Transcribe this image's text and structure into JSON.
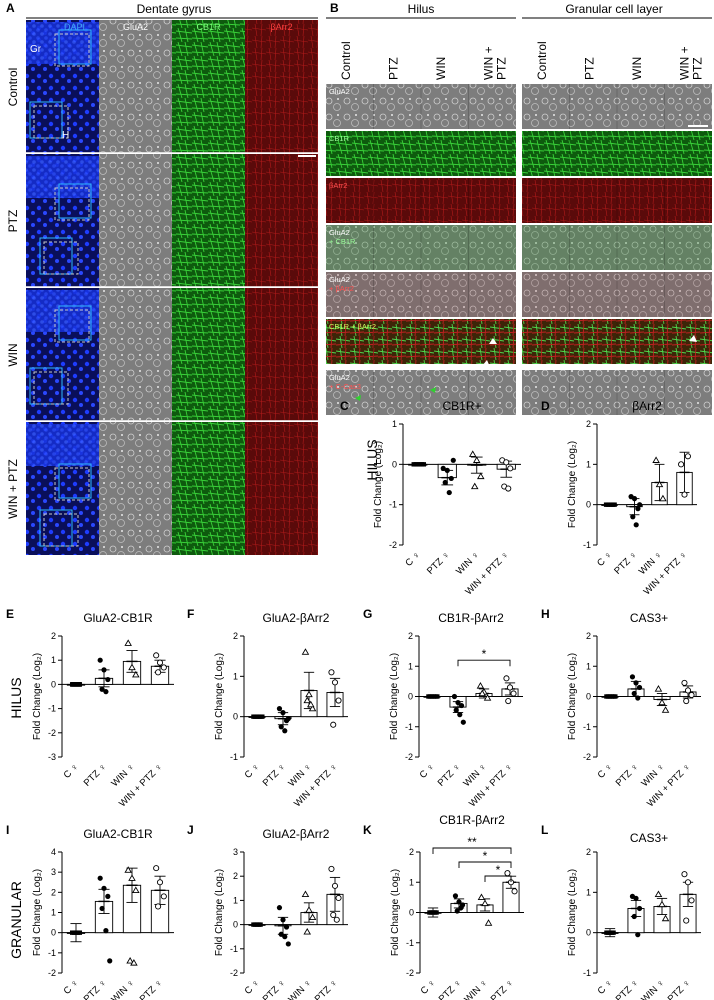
{
  "panels": {
    "A": {
      "letter": "A",
      "title": "Dentate gyrus",
      "rows": [
        "Control",
        "PTZ",
        "WIN",
        "WIN + PTZ"
      ],
      "channels": [
        {
          "label": "DAPI",
          "color": "#1e3cff",
          "label_color": "#3fa9f5"
        },
        {
          "label": "GluA2",
          "color": "#8c8c8c",
          "label_color": "#ffffff"
        },
        {
          "label": "CB1R",
          "color": "#1fa51f",
          "label_color": "#7cff7c"
        },
        {
          "label": "βArr2",
          "color": "#a01010",
          "label_color": "#ff4040"
        }
      ],
      "region_labels": [
        "Gr",
        "H"
      ]
    },
    "B": {
      "letter": "B",
      "titles": [
        "Hilus",
        "Granular cell layer"
      ],
      "groups": [
        "Control",
        "PTZ",
        "WIN",
        "WIN + PTZ"
      ],
      "group_line1": [
        "Control",
        "PTZ",
        "WIN",
        "WIN +"
      ],
      "group_line2": [
        "",
        "",
        "",
        "PTZ"
      ],
      "row_labels": [
        {
          "l1": "GluA2",
          "l1c": "#ffffff",
          "l2": "",
          "l2c": "#ffffff",
          "color": "#8a8a8a"
        },
        {
          "l1": "CB1R",
          "l1c": "#9cff9c",
          "l2": "",
          "l2c": "#ffffff",
          "color": "#1e9e1e"
        },
        {
          "l1": "βArr2",
          "l1c": "#ff5050",
          "l2": "",
          "l2c": "#ffffff",
          "color": "#9a0f0f"
        },
        {
          "l1": "GluA2",
          "l1c": "#ffffff",
          "l2": "+ CB1R",
          "l2c": "#9cff9c",
          "color": "#6f8a6f"
        },
        {
          "l1": "GluA2",
          "l1c": "#ffffff",
          "l2": "+ βArr2",
          "l2c": "#ff5050",
          "color": "#847070"
        },
        {
          "l1": "CB1R + βArr2",
          "l1c": "#c8ff60",
          "l2": "",
          "l2c": "#ffffff",
          "color": "#5a5a14"
        },
        {
          "l1": "GluA2",
          "l1c": "#ffffff",
          "l2": "+ C-Cas3",
          "l2c": "#ff5050",
          "color": "#7a7a7a"
        }
      ]
    }
  },
  "section_labels": {
    "hilus_1": "HILUS",
    "hilus_2": "HILUS",
    "granular": "GRANULAR"
  },
  "chart_data": [
    {
      "panel": "C",
      "type": "bar",
      "title": "CB1R+",
      "ylabel": "Fold Change (Log₂)",
      "ylim": [
        -2,
        1
      ],
      "yticks": [
        -2,
        -1,
        0,
        1
      ],
      "categories": [
        "C ♀",
        "PTZ ♀",
        "WIN ♀",
        "WIN + PTZ ♀"
      ],
      "values": [
        0,
        -0.33,
        -0.02,
        -0.12
      ],
      "errors": [
        0.03,
        0.18,
        0.2,
        0.2
      ],
      "markers": [
        "square",
        "circle",
        "triangle",
        "open-circle"
      ],
      "points": [
        [
          0,
          0,
          0,
          0,
          0,
          0
        ],
        [
          -0.1,
          -0.15,
          -0.35,
          -0.45,
          -0.7,
          0.1
        ],
        [
          0.25,
          0.1,
          -0.3,
          -0.55
        ],
        [
          0.1,
          0.05,
          -0.1,
          -0.55,
          -0.6
        ]
      ],
      "significance": []
    },
    {
      "panel": "D",
      "type": "bar",
      "title": "βArr2",
      "ylabel": "Fold Change (Log₂)",
      "ylim": [
        -1,
        2
      ],
      "yticks": [
        -1,
        0,
        1,
        2
      ],
      "categories": [
        "C ♀",
        "PTZ ♀",
        "WIN ♀",
        "WIN + PTZ ♀"
      ],
      "values": [
        0,
        -0.05,
        0.55,
        0.8
      ],
      "errors": [
        0.03,
        0.2,
        0.45,
        0.5
      ],
      "markers": [
        "square",
        "circle",
        "triangle",
        "open-circle"
      ],
      "points": [
        [
          0,
          0,
          0,
          0,
          0,
          0
        ],
        [
          0.2,
          0.15,
          -0.1,
          -0.3,
          -0.5,
          0.0
        ],
        [
          1.1,
          0.5,
          0.15
        ],
        [
          1.0,
          0.25,
          1.2
        ]
      ],
      "significance": []
    },
    {
      "panel": "E",
      "type": "bar",
      "title": "GluA2-CB1R",
      "ylabel": "Fold Change (Log₂)",
      "ylim": [
        -3,
        2
      ],
      "yticks": [
        -3,
        -2,
        -1,
        0,
        1,
        2
      ],
      "categories": [
        "C ♀",
        "PTZ ♀",
        "WIN ♀",
        "WIN + PTZ ♀"
      ],
      "values": [
        0,
        0.25,
        0.95,
        0.75
      ],
      "errors": [
        0.08,
        0.35,
        0.45,
        0.25
      ],
      "markers": [
        "square",
        "circle",
        "triangle",
        "open-circle"
      ],
      "points": [
        [
          0,
          0,
          0,
          0,
          0
        ],
        [
          1.0,
          0.6,
          0.2,
          -0.2,
          -0.3
        ],
        [
          1.7,
          0.7,
          0.4
        ],
        [
          1.2,
          0.9,
          0.7,
          0.5
        ]
      ],
      "significance": []
    },
    {
      "panel": "F",
      "type": "bar",
      "title": "GluA2-βArr2",
      "ylabel": "Fold Change (Log₂)",
      "ylim": [
        -1,
        2
      ],
      "yticks": [
        -1,
        0,
        1,
        2
      ],
      "categories": [
        "C ♀",
        "PTZ ♀",
        "WIN ♀",
        "WIN + PTZ ♀"
      ],
      "values": [
        0,
        -0.05,
        0.65,
        0.6
      ],
      "errors": [
        0.03,
        0.15,
        0.45,
        0.35
      ],
      "markers": [
        "square",
        "circle",
        "triangle",
        "open-circle"
      ],
      "points": [
        [
          0,
          0,
          0,
          0,
          0,
          0
        ],
        [
          0.2,
          0.1,
          -0.1,
          -0.25,
          -0.35,
          -0.05
        ],
        [
          1.6,
          0.55,
          0.2,
          0.4,
          0.3
        ],
        [
          1.1,
          0.85,
          0.4,
          -0.2
        ]
      ],
      "significance": []
    },
    {
      "panel": "G",
      "type": "bar",
      "title": "CB1R-βArr2",
      "ylabel": "Fold Change (Log₂)",
      "ylim": [
        -2,
        2
      ],
      "yticks": [
        -2,
        -1,
        0,
        1,
        2
      ],
      "categories": [
        "C ♀",
        "PTZ ♀",
        "WIN ♀",
        "WIN + PTZ ♀"
      ],
      "values": [
        0,
        -0.35,
        0.1,
        0.25
      ],
      "errors": [
        0.03,
        0.18,
        0.15,
        0.2
      ],
      "markers": [
        "square",
        "circle",
        "triangle",
        "open-circle"
      ],
      "points": [
        [
          0,
          0,
          0,
          0,
          0,
          0
        ],
        [
          0,
          -0.2,
          -0.3,
          -0.45,
          -0.6,
          -0.85
        ],
        [
          0.35,
          0.15,
          -0.05,
          0.1
        ],
        [
          0.6,
          0.3,
          0.1,
          -0.15
        ]
      ],
      "significance": [
        {
          "from": 1,
          "to": 3,
          "label": "*"
        }
      ]
    },
    {
      "panel": "H",
      "type": "bar",
      "title": "CAS3+",
      "ylabel": "Fold Change (Log₂)",
      "ylim": [
        -2,
        2
      ],
      "yticks": [
        -2,
        -1,
        0,
        1,
        2
      ],
      "categories": [
        "C ♀",
        "PTZ ♀",
        "WIN ♀",
        "WIN + PTZ ♀"
      ],
      "values": [
        0,
        0.25,
        -0.1,
        0.15
      ],
      "errors": [
        0.03,
        0.25,
        0.2,
        0.2
      ],
      "markers": [
        "square",
        "circle",
        "triangle",
        "open-circle"
      ],
      "points": [
        [
          0,
          0,
          0,
          0,
          0,
          0
        ],
        [
          0.65,
          0.45,
          0.3,
          0.1,
          -0.05
        ],
        [
          0.25,
          -0.2,
          -0.45
        ],
        [
          0.45,
          0.2,
          0.05,
          -0.15
        ]
      ],
      "significance": []
    },
    {
      "panel": "I",
      "type": "bar",
      "title": "GluA2-CB1R",
      "ylabel": "Fold Change (Log₂)",
      "ylim": [
        -2,
        4
      ],
      "yticks": [
        -2,
        -1,
        0,
        1,
        2,
        3,
        4
      ],
      "categories": [
        "C ♀",
        "PTZ ♀",
        "WIN ♀",
        "WIN + PTZ ♀"
      ],
      "values": [
        0,
        1.55,
        2.35,
        2.1
      ],
      "errors": [
        0.45,
        0.6,
        0.85,
        0.7
      ],
      "markers": [
        "square",
        "circle",
        "triangle",
        "open-circle"
      ],
      "points": [
        [
          0,
          0,
          0,
          0,
          0
        ],
        [
          2.7,
          2.2,
          1.8,
          1.2,
          0.1,
          -1.4
        ],
        [
          3.1,
          2.7,
          2.1,
          -1.4,
          -1.5
        ],
        [
          3.2,
          2.5,
          1.8,
          1.3
        ]
      ],
      "significance": []
    },
    {
      "panel": "J",
      "type": "bar",
      "title": "GluA2-βArr2",
      "ylabel": "Fold Change (Log₂)",
      "ylim": [
        -2,
        3
      ],
      "yticks": [
        -2,
        -1,
        0,
        1,
        2,
        3
      ],
      "categories": [
        "C ♀",
        "PTZ ♀",
        "WIN ♀",
        "WIN + PTZ ♀"
      ],
      "values": [
        0,
        -0.05,
        0.5,
        1.25
      ],
      "errors": [
        0.05,
        0.35,
        0.4,
        0.7
      ],
      "markers": [
        "square",
        "circle",
        "triangle",
        "open-circle"
      ],
      "points": [
        [
          0,
          0,
          0,
          0,
          0
        ],
        [
          0.7,
          0.2,
          -0.1,
          -0.4,
          -0.5,
          -0.8
        ],
        [
          1.25,
          0.6,
          0.3,
          -0.3
        ],
        [
          2.3,
          1.6,
          1.1,
          0.4,
          0.2
        ]
      ],
      "significance": []
    },
    {
      "panel": "K",
      "type": "bar",
      "title": "CB1R-βArr2",
      "ylabel": "Fold Change (Log₂)",
      "ylim": [
        -2,
        2
      ],
      "yticks": [
        -2,
        -1,
        0,
        1,
        2
      ],
      "categories": [
        "C ♀",
        "PTZ ♀",
        "WIN ♀",
        "WIN + PTZ ♀"
      ],
      "values": [
        0,
        0.3,
        0.25,
        1.0
      ],
      "errors": [
        0.15,
        0.15,
        0.2,
        0.2
      ],
      "markers": [
        "square",
        "circle",
        "triangle",
        "open-circle"
      ],
      "points": [
        [
          0,
          0,
          0,
          0,
          0
        ],
        [
          0.55,
          0.35,
          0.25,
          0.05,
          0.15
        ],
        [
          0.5,
          0.3,
          -0.35
        ],
        [
          1.3,
          1.0,
          0.7
        ]
      ],
      "significance": [
        {
          "from": 0,
          "to": 3,
          "label": "**"
        },
        {
          "from": 1,
          "to": 3,
          "label": "*"
        },
        {
          "from": 2,
          "to": 3,
          "label": "*"
        }
      ]
    },
    {
      "panel": "L",
      "type": "bar",
      "title": "CAS3+",
      "ylabel": "Fold Change (Log₂)",
      "ylim": [
        -1,
        2
      ],
      "yticks": [
        -1,
        0,
        1,
        2
      ],
      "categories": [
        "C ♀",
        "PTZ ♀",
        "WIN ♀",
        "WIN + PTZ ♀"
      ],
      "values": [
        0,
        0.6,
        0.65,
        0.95
      ],
      "errors": [
        0.1,
        0.2,
        0.2,
        0.3
      ],
      "markers": [
        "square",
        "circle",
        "triangle",
        "open-circle"
      ],
      "points": [
        [
          0,
          0,
          0,
          0,
          0
        ],
        [
          0.9,
          0.85,
          0.6,
          0.4,
          -0.05
        ],
        [
          0.95,
          0.7,
          0.35
        ],
        [
          1.45,
          1.25,
          0.8,
          0.3
        ]
      ],
      "significance": []
    }
  ]
}
